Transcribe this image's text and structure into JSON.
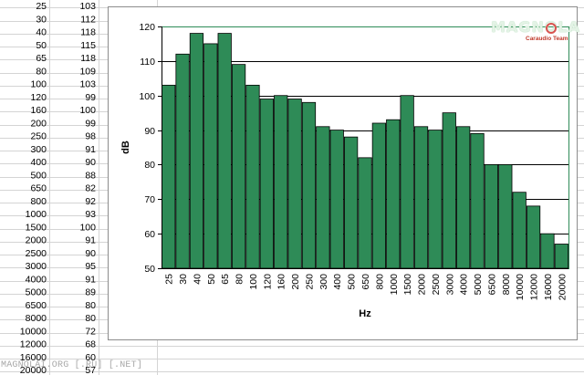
{
  "spreadsheet": {
    "rows": [
      {
        "hz": "25",
        "db": "103"
      },
      {
        "hz": "30",
        "db": "112"
      },
      {
        "hz": "40",
        "db": "118"
      },
      {
        "hz": "50",
        "db": "115"
      },
      {
        "hz": "65",
        "db": "118"
      },
      {
        "hz": "80",
        "db": "109"
      },
      {
        "hz": "100",
        "db": "103"
      },
      {
        "hz": "120",
        "db": "99"
      },
      {
        "hz": "160",
        "db": "100"
      },
      {
        "hz": "200",
        "db": "99"
      },
      {
        "hz": "250",
        "db": "98"
      },
      {
        "hz": "300",
        "db": "91"
      },
      {
        "hz": "400",
        "db": "90"
      },
      {
        "hz": "500",
        "db": "88"
      },
      {
        "hz": "650",
        "db": "82"
      },
      {
        "hz": "800",
        "db": "92"
      },
      {
        "hz": "1000",
        "db": "93"
      },
      {
        "hz": "1500",
        "db": "100"
      },
      {
        "hz": "2000",
        "db": "91"
      },
      {
        "hz": "2500",
        "db": "90"
      },
      {
        "hz": "3000",
        "db": "95"
      },
      {
        "hz": "4000",
        "db": "91"
      },
      {
        "hz": "5000",
        "db": "89"
      },
      {
        "hz": "6500",
        "db": "80"
      },
      {
        "hz": "8000",
        "db": "80"
      },
      {
        "hz": "10000",
        "db": "72"
      },
      {
        "hz": "12000",
        "db": "68"
      },
      {
        "hz": "16000",
        "db": "60"
      },
      {
        "hz": "20000",
        "db": "57"
      }
    ]
  },
  "chart_data": {
    "type": "bar",
    "categories": [
      "25",
      "30",
      "40",
      "50",
      "65",
      "80",
      "100",
      "120",
      "160",
      "200",
      "250",
      "300",
      "400",
      "500",
      "650",
      "800",
      "1000",
      "1500",
      "2000",
      "2500",
      "3000",
      "4000",
      "5000",
      "6500",
      "8000",
      "10000",
      "12000",
      "16000",
      "20000"
    ],
    "values": [
      103,
      112,
      118,
      115,
      118,
      109,
      103,
      99,
      100,
      99,
      98,
      91,
      90,
      88,
      82,
      92,
      93,
      100,
      91,
      90,
      95,
      91,
      89,
      80,
      80,
      72,
      68,
      60,
      57
    ],
    "title": "",
    "xlabel": "Hz",
    "ylabel": "dB",
    "ylim": [
      50,
      120
    ],
    "yticks": [
      50,
      60,
      70,
      80,
      90,
      100,
      110,
      120
    ],
    "grid": true,
    "legend": "none",
    "colors": {
      "bar": "#2e8b57",
      "bar_edge": "#000000",
      "plot_border": "#2e8b57",
      "grid": "#000000"
    }
  },
  "branding": {
    "logo_word": "MAGNOLA",
    "logo_sub": "Caraudio Team",
    "watermark": "MAGNOLAI.ORG [.RU] [.NET]"
  }
}
